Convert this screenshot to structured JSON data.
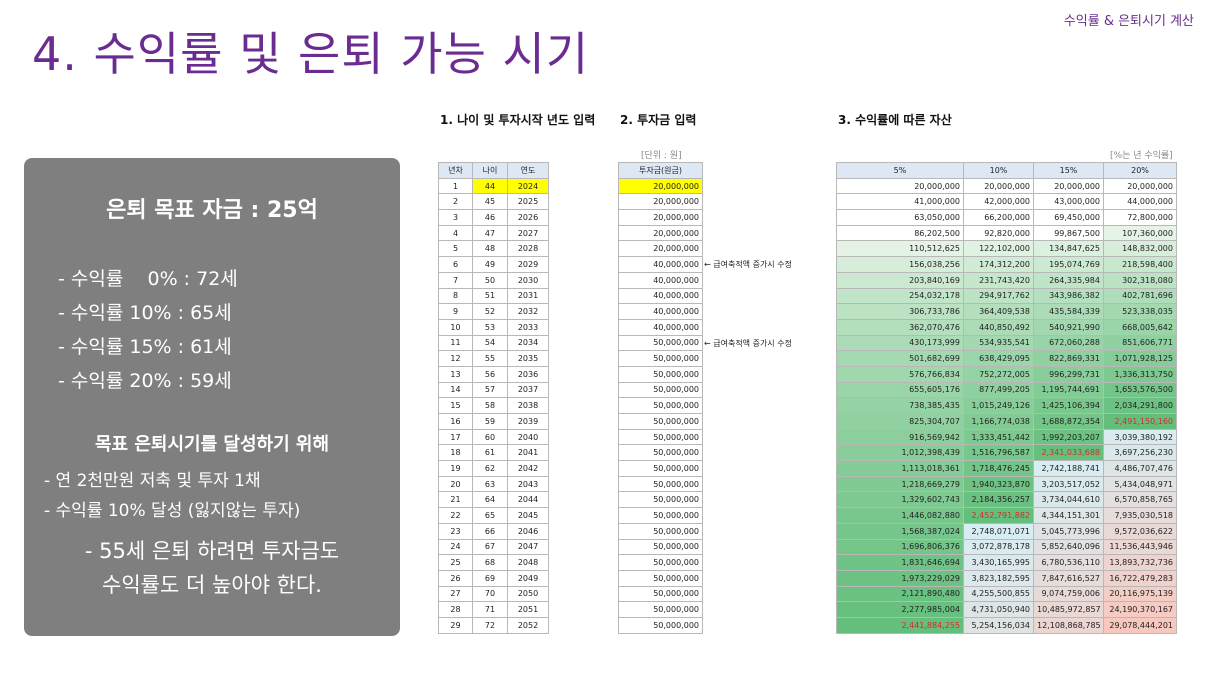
{
  "header": {
    "corner_label": "수익률 & 은퇴시기 계산",
    "title": "4. 수익률 및 은퇴 가능 시기"
  },
  "summary": {
    "goal": "은퇴 목표 자금 : 25억",
    "rates": [
      "- 수익률    0% : 72세",
      "- 수익률 10% : 65세",
      "- 수익률 15% : 61세",
      "- 수익률 20% : 59세"
    ],
    "strategy_title": "목표 은퇴시기를 달성하기 위해",
    "bullets": [
      "- 연 2천만원 저축 및 투자 1채",
      "- 수익률 10% 달성 (잃지않는 투자)"
    ],
    "note_lines": [
      "- 55세 은퇴 하려면 투자금도",
      "수익률도 더 높아야 한다."
    ]
  },
  "sections": {
    "s1": "1. 나이 및 투자시작 년도 입력",
    "s2": "2. 투자금 입력",
    "s3": "3. 수익률에 따른 자산"
  },
  "units": {
    "won": "[단위 : 원]",
    "rate": "[%는 년 수익률]"
  },
  "notes": {
    "note1": "← 급여축적액 증가시 수정",
    "note2": "← 급여축적액 증가시 수정"
  },
  "table1": {
    "headers": [
      "년차",
      "나이",
      "연도"
    ],
    "rows": [
      [
        "1",
        "44",
        "2024"
      ],
      [
        "2",
        "45",
        "2025"
      ],
      [
        "3",
        "46",
        "2026"
      ],
      [
        "4",
        "47",
        "2027"
      ],
      [
        "5",
        "48",
        "2028"
      ],
      [
        "6",
        "49",
        "2029"
      ],
      [
        "7",
        "50",
        "2030"
      ],
      [
        "8",
        "51",
        "2031"
      ],
      [
        "9",
        "52",
        "2032"
      ],
      [
        "10",
        "53",
        "2033"
      ],
      [
        "11",
        "54",
        "2034"
      ],
      [
        "12",
        "55",
        "2035"
      ],
      [
        "13",
        "56",
        "2036"
      ],
      [
        "14",
        "57",
        "2037"
      ],
      [
        "15",
        "58",
        "2038"
      ],
      [
        "16",
        "59",
        "2039"
      ],
      [
        "17",
        "60",
        "2040"
      ],
      [
        "18",
        "61",
        "2041"
      ],
      [
        "19",
        "62",
        "2042"
      ],
      [
        "20",
        "63",
        "2043"
      ],
      [
        "21",
        "64",
        "2044"
      ],
      [
        "22",
        "65",
        "2045"
      ],
      [
        "23",
        "66",
        "2046"
      ],
      [
        "24",
        "67",
        "2047"
      ],
      [
        "25",
        "68",
        "2048"
      ],
      [
        "26",
        "69",
        "2049"
      ],
      [
        "27",
        "70",
        "2050"
      ],
      [
        "28",
        "71",
        "2051"
      ],
      [
        "29",
        "72",
        "2052"
      ]
    ]
  },
  "table2": {
    "header": "투자금(원금)",
    "rows": [
      "20,000,000",
      "20,000,000",
      "20,000,000",
      "20,000,000",
      "20,000,000",
      "40,000,000",
      "40,000,000",
      "40,000,000",
      "40,000,000",
      "40,000,000",
      "50,000,000",
      "50,000,000",
      "50,000,000",
      "50,000,000",
      "50,000,000",
      "50,000,000",
      "50,000,000",
      "50,000,000",
      "50,000,000",
      "50,000,000",
      "50,000,000",
      "50,000,000",
      "50,000,000",
      "50,000,000",
      "50,000,000",
      "50,000,000",
      "50,000,000",
      "50,000,000",
      "50,000,000"
    ]
  },
  "table3": {
    "headers": [
      "5%",
      "10%",
      "15%",
      "20%"
    ],
    "target_hits": [
      [
        28,
        0
      ],
      [
        21,
        1
      ],
      [
        17,
        2
      ],
      [
        15,
        3
      ]
    ],
    "rows": [
      [
        "20,000,000",
        "20,000,000",
        "20,000,000",
        "20,000,000"
      ],
      [
        "41,000,000",
        "42,000,000",
        "43,000,000",
        "44,000,000"
      ],
      [
        "63,050,000",
        "66,200,000",
        "69,450,000",
        "72,800,000"
      ],
      [
        "86,202,500",
        "92,820,000",
        "99,867,500",
        "107,360,000"
      ],
      [
        "110,512,625",
        "122,102,000",
        "134,847,625",
        "148,832,000"
      ],
      [
        "156,038,256",
        "174,312,200",
        "195,074,769",
        "218,598,400"
      ],
      [
        "203,840,169",
        "231,743,420",
        "264,335,984",
        "302,318,080"
      ],
      [
        "254,032,178",
        "294,917,762",
        "343,986,382",
        "402,781,696"
      ],
      [
        "306,733,786",
        "364,409,538",
        "435,584,339",
        "523,338,035"
      ],
      [
        "362,070,476",
        "440,850,492",
        "540,921,990",
        "668,005,642"
      ],
      [
        "430,173,999",
        "534,935,541",
        "672,060,288",
        "851,606,771"
      ],
      [
        "501,682,699",
        "638,429,095",
        "822,869,331",
        "1,071,928,125"
      ],
      [
        "576,766,834",
        "752,272,005",
        "996,299,731",
        "1,336,313,750"
      ],
      [
        "655,605,176",
        "877,499,205",
        "1,195,744,691",
        "1,653,576,500"
      ],
      [
        "738,385,435",
        "1,015,249,126",
        "1,425,106,394",
        "2,034,291,800"
      ],
      [
        "825,304,707",
        "1,166,774,038",
        "1,688,872,354",
        "2,491,150,160"
      ],
      [
        "916,569,942",
        "1,333,451,442",
        "1,992,203,207",
        "3,039,380,192"
      ],
      [
        "1,012,398,439",
        "1,516,796,587",
        "2,341,033,688",
        "3,697,256,230"
      ],
      [
        "1,113,018,361",
        "1,718,476,245",
        "2,742,188,741",
        "4,486,707,476"
      ],
      [
        "1,218,669,279",
        "1,940,323,870",
        "3,203,517,052",
        "5,434,048,971"
      ],
      [
        "1,329,602,743",
        "2,184,356,257",
        "3,734,044,610",
        "6,570,858,765"
      ],
      [
        "1,446,082,880",
        "2,452,791,882",
        "4,344,151,301",
        "7,935,030,518"
      ],
      [
        "1,568,387,024",
        "2,748,071,071",
        "5,045,773,996",
        "9,572,036,622"
      ],
      [
        "1,696,806,376",
        "3,072,878,178",
        "5,852,640,096",
        "11,536,443,946"
      ],
      [
        "1,831,646,694",
        "3,430,165,995",
        "6,780,536,110",
        "13,893,732,736"
      ],
      [
        "1,973,229,029",
        "3,823,182,595",
        "7,847,616,527",
        "16,722,479,283"
      ],
      [
        "2,121,890,480",
        "4,255,500,855",
        "9,074,759,006",
        "20,116,975,139"
      ],
      [
        "2,277,985,004",
        "4,731,050,940",
        "10,485,972,857",
        "24,190,370,167"
      ],
      [
        "2,441,884,255",
        "5,254,156,034",
        "12,108,868,785",
        "29,078,444,201"
      ]
    ]
  }
}
